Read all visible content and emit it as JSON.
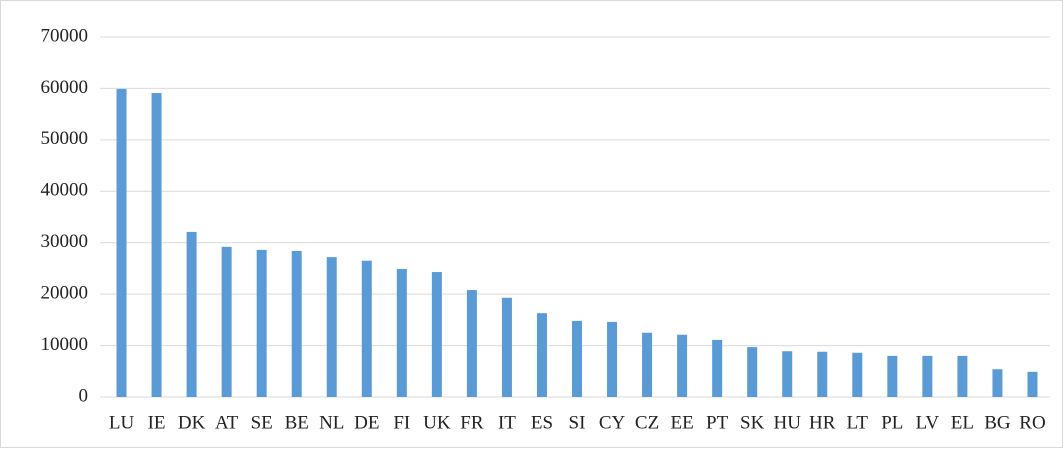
{
  "chart_data": {
    "type": "bar",
    "categories": [
      "LU",
      "IE",
      "DK",
      "AT",
      "SE",
      "BE",
      "NL",
      "DE",
      "FI",
      "UK",
      "FR",
      "IT",
      "ES",
      "SI",
      "CY",
      "CZ",
      "EE",
      "PT",
      "SK",
      "HU",
      "HR",
      "LT",
      "PL",
      "LV",
      "EL",
      "BG",
      "RO"
    ],
    "values": [
      59900,
      59100,
      32100,
      29200,
      28600,
      28400,
      27200,
      26500,
      24900,
      24300,
      20800,
      19300,
      16300,
      14800,
      14600,
      12500,
      12100,
      11100,
      9700,
      8900,
      8800,
      8600,
      8000,
      8000,
      8000,
      5400,
      4900
    ],
    "color": "#5b9bd5",
    "ylim": [
      0,
      70000
    ],
    "yticks": [
      0,
      10000,
      20000,
      30000,
      40000,
      50000,
      60000,
      70000
    ],
    "grid": true
  }
}
